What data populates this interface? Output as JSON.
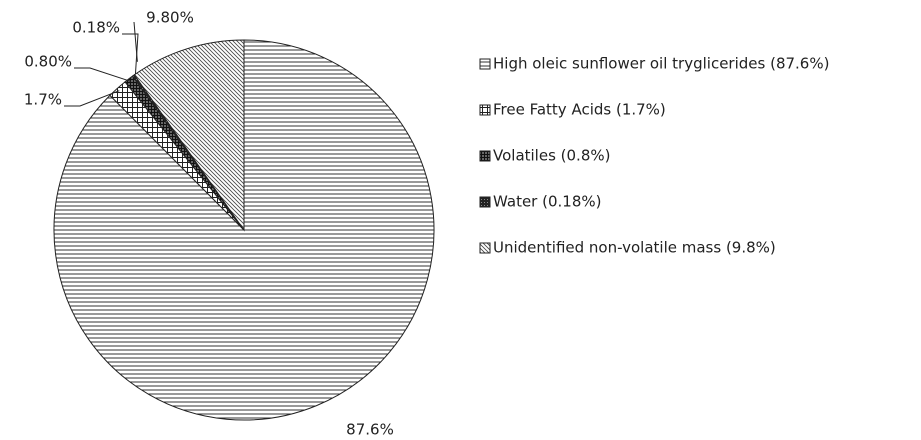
{
  "chart_data": {
    "type": "pie",
    "categories": [
      "High oleic sunflower oil tryglicerides (87.6%)",
      "Free Fatty Acids (1.7%)",
      "Volatiles (0.8%)",
      "Water (0.18%)",
      "Unidentified non-volatile mass (9.8%)"
    ],
    "values": [
      87.6,
      1.7,
      0.8,
      0.18,
      9.8
    ],
    "value_labels": [
      "87.6%",
      "1.7%",
      "0.80%",
      "0.18%",
      "9.80%"
    ],
    "legend": "right"
  }
}
